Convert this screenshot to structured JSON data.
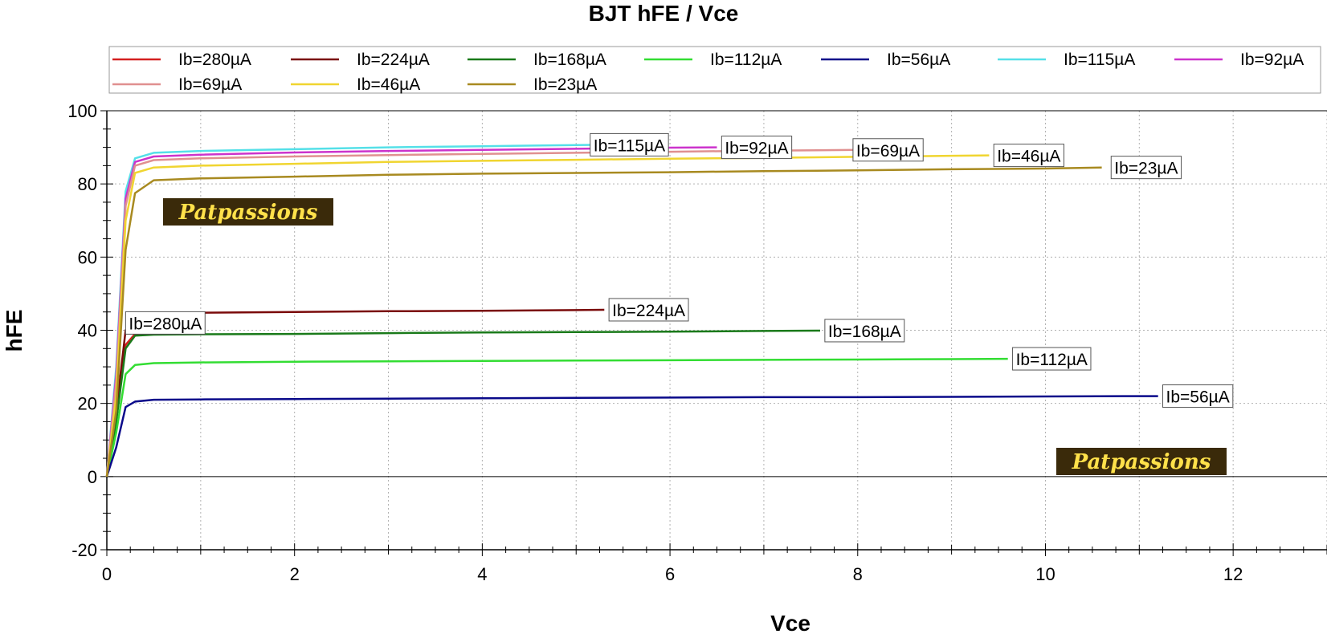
{
  "chart_data": {
    "type": "line",
    "title": "BJT hFE / Vce",
    "xlabel": "Vce",
    "ylabel": "hFE",
    "xlim": [
      0,
      13
    ],
    "ylim": [
      -20,
      100
    ],
    "xticks": [
      0,
      2,
      4,
      6,
      8,
      10,
      12
    ],
    "yticks": [
      -20,
      0,
      20,
      40,
      60,
      80,
      100
    ],
    "grid": true,
    "legend_position": "top",
    "watermark": "Patpassions",
    "series": [
      {
        "name": "Ib=280µA",
        "color": "#d42020",
        "x": [
          0,
          0.1,
          0.2,
          0.3,
          0.5,
          1.0
        ],
        "y": [
          0,
          20,
          36,
          39,
          39.5,
          40
        ]
      },
      {
        "name": "Ib=224µA",
        "color": "#7a0a0a",
        "x": [
          0,
          0.1,
          0.2,
          0.3,
          0.5,
          1,
          2,
          3,
          4,
          5,
          5.3
        ],
        "y": [
          0,
          18,
          40,
          43.5,
          44.5,
          44.8,
          45,
          45.2,
          45.3,
          45.5,
          45.6
        ]
      },
      {
        "name": "Ib=168µA",
        "color": "#1a7a1a",
        "x": [
          0,
          0.1,
          0.2,
          0.3,
          0.5,
          1,
          2,
          3,
          4,
          5,
          6,
          7,
          7.6
        ],
        "y": [
          0,
          15,
          35,
          38.5,
          38.8,
          38.9,
          39,
          39.2,
          39.4,
          39.5,
          39.6,
          39.8,
          39.9
        ]
      },
      {
        "name": "Ib=112µA",
        "color": "#33dd33",
        "x": [
          0,
          0.1,
          0.2,
          0.3,
          0.5,
          1,
          2,
          3,
          4,
          5,
          6,
          7,
          8,
          9,
          9.6
        ],
        "y": [
          0,
          12,
          28,
          30.5,
          31,
          31.2,
          31.4,
          31.5,
          31.6,
          31.7,
          31.8,
          31.9,
          32,
          32.1,
          32.2
        ]
      },
      {
        "name": "Ib=56µA",
        "color": "#0a0a8a",
        "x": [
          0,
          0.1,
          0.2,
          0.3,
          0.5,
          1,
          2,
          3,
          4,
          5,
          6,
          7,
          8,
          9,
          10,
          11,
          11.2
        ],
        "y": [
          0,
          8,
          19,
          20.5,
          21,
          21.1,
          21.2,
          21.3,
          21.4,
          21.5,
          21.6,
          21.7,
          21.7,
          21.8,
          21.9,
          22,
          22
        ]
      },
      {
        "name": "Ib=115µA",
        "color": "#55e0e8",
        "x": [
          0,
          0.1,
          0.2,
          0.3,
          0.5,
          1,
          2,
          3,
          4,
          5,
          5.3
        ],
        "y": [
          0,
          30,
          78,
          87,
          88.5,
          89,
          89.5,
          90,
          90.3,
          90.6,
          90.7
        ]
      },
      {
        "name": "Ib=92µA",
        "color": "#cc33cc",
        "x": [
          0,
          0.1,
          0.2,
          0.3,
          0.5,
          1,
          2,
          3,
          4,
          5,
          6,
          6.5
        ],
        "y": [
          0,
          28,
          76,
          86,
          87.5,
          88,
          88.6,
          89,
          89.3,
          89.6,
          89.9,
          90
        ]
      },
      {
        "name": "Ib=69µA",
        "color": "#e09090",
        "x": [
          0,
          0.1,
          0.2,
          0.3,
          0.5,
          1,
          2,
          3,
          4,
          5,
          6,
          7,
          8
        ],
        "y": [
          0,
          26,
          74,
          85,
          86.5,
          87,
          87.5,
          87.9,
          88.2,
          88.5,
          88.8,
          89.1,
          89.3
        ]
      },
      {
        "name": "Ib=46µA",
        "color": "#f0d530",
        "x": [
          0,
          0.1,
          0.2,
          0.3,
          0.5,
          1,
          2,
          3,
          4,
          5,
          6,
          7,
          8,
          9,
          9.4
        ],
        "y": [
          0,
          22,
          70,
          83,
          84.5,
          85,
          85.5,
          86,
          86.3,
          86.6,
          86.9,
          87.1,
          87.4,
          87.7,
          87.8
        ]
      },
      {
        "name": "Ib=23µA",
        "color": "#a88a20",
        "x": [
          0,
          0.1,
          0.2,
          0.3,
          0.5,
          1,
          2,
          3,
          4,
          5,
          6,
          7,
          8,
          9,
          10,
          10.6
        ],
        "y": [
          0,
          18,
          62,
          77.5,
          81,
          81.5,
          82,
          82.5,
          82.8,
          83,
          83.2,
          83.5,
          83.7,
          84,
          84.2,
          84.5
        ]
      }
    ],
    "annotations": [
      {
        "text": "Ib=280µA",
        "x": 0.2,
        "y": 42
      },
      {
        "text": "Ib=224µA",
        "x": 5.35,
        "y": 45.6
      },
      {
        "text": "Ib=168µA",
        "x": 7.65,
        "y": 39.9
      },
      {
        "text": "Ib=112µA",
        "x": 9.65,
        "y": 32.2
      },
      {
        "text": "Ib=56µA",
        "x": 11.25,
        "y": 22
      },
      {
        "text": "Ib=115µA",
        "x": 5.15,
        "y": 90.7
      },
      {
        "text": "Ib=92µA",
        "x": 6.55,
        "y": 90
      },
      {
        "text": "Ib=69µA",
        "x": 7.95,
        "y": 89.3
      },
      {
        "text": "Ib=46µA",
        "x": 9.45,
        "y": 87.8
      },
      {
        "text": "Ib=23µA",
        "x": 10.7,
        "y": 84.5
      }
    ]
  }
}
